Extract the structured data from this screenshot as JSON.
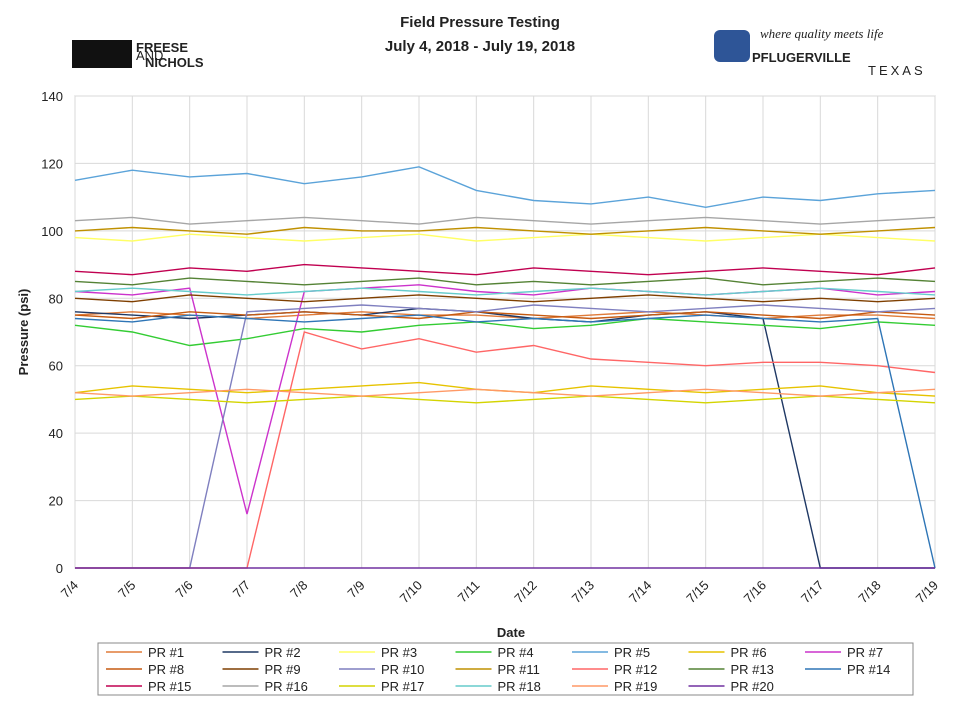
{
  "logos": {
    "left_top": "FREESE",
    "left_small": "AND",
    "left_bottom": "NICHOLS",
    "right_tagline": "where quality meets life",
    "right_name": "PFLUGERVILLE",
    "right_state": "TEXAS"
  },
  "chart_data": {
    "type": "line",
    "title": "Field Pressure Testing",
    "subtitle": "July 4, 2018 - July 19, 2018",
    "x_label": "Date",
    "y_label": "Pressure (psi)",
    "categories": [
      "7/4",
      "7/5",
      "7/6",
      "7/7",
      "7/8",
      "7/9",
      "7/10",
      "7/11",
      "7/12",
      "7/13",
      "7/14",
      "7/15",
      "7/16",
      "7/17",
      "7/18",
      "7/19"
    ],
    "ylim": [
      0,
      140
    ],
    "yticks": [
      0,
      20,
      40,
      60,
      80,
      100,
      120,
      140
    ],
    "grid": true,
    "series": [
      {
        "name": "PR #1",
        "color": "#e07b39",
        "values": [
          75,
          76,
          75,
          74,
          75,
          76,
          75,
          75,
          74,
          75,
          76,
          75,
          74,
          75,
          75,
          74
        ]
      },
      {
        "name": "PR #2",
        "color": "#1f3864",
        "values": [
          76,
          75,
          74,
          75,
          76,
          75,
          77,
          76,
          74,
          73,
          75,
          76,
          74,
          0,
          0,
          0
        ]
      },
      {
        "name": "PR #3",
        "color": "#ffff66",
        "values": [
          98,
          97,
          99,
          98,
          97,
          98,
          99,
          97,
          98,
          99,
          98,
          97,
          98,
          99,
          98,
          97
        ]
      },
      {
        "name": "PR #4",
        "color": "#33cc33",
        "values": [
          72,
          70,
          66,
          68,
          71,
          70,
          72,
          73,
          71,
          72,
          74,
          73,
          72,
          71,
          73,
          72
        ]
      },
      {
        "name": "PR #5",
        "color": "#5ba3d9",
        "values": [
          115,
          118,
          116,
          117,
          114,
          116,
          119,
          112,
          109,
          108,
          110,
          107,
          110,
          109,
          111,
          112
        ]
      },
      {
        "name": "PR #6",
        "color": "#e6c300",
        "values": [
          52,
          54,
          53,
          52,
          53,
          54,
          55,
          53,
          52,
          54,
          53,
          52,
          53,
          54,
          52,
          51
        ]
      },
      {
        "name": "PR #7",
        "color": "#cc33cc",
        "values": [
          82,
          81,
          83,
          16,
          82,
          83,
          84,
          82,
          81,
          83,
          82,
          81,
          82,
          83,
          81,
          82
        ]
      },
      {
        "name": "PR #8",
        "color": "#c55a11",
        "values": [
          75,
          74,
          76,
          75,
          76,
          75,
          74,
          76,
          75,
          74,
          75,
          76,
          75,
          74,
          76,
          75
        ]
      },
      {
        "name": "PR #9",
        "color": "#7f3f00",
        "values": [
          80,
          79,
          81,
          80,
          79,
          80,
          81,
          80,
          79,
          80,
          81,
          80,
          79,
          80,
          79,
          80
        ]
      },
      {
        "name": "PR #10",
        "color": "#7f7fbf",
        "values": [
          0,
          0,
          0,
          76,
          77,
          78,
          77,
          76,
          78,
          77,
          76,
          77,
          78,
          77,
          76,
          77
        ]
      },
      {
        "name": "PR #11",
        "color": "#bf9000",
        "values": [
          100,
          101,
          100,
          99,
          101,
          100,
          100,
          101,
          100,
          99,
          100,
          101,
          100,
          99,
          100,
          101
        ]
      },
      {
        "name": "PR #12",
        "color": "#ff6666",
        "values": [
          0,
          0,
          0,
          0,
          70,
          65,
          68,
          64,
          66,
          62,
          61,
          60,
          61,
          61,
          60,
          58
        ]
      },
      {
        "name": "PR #13",
        "color": "#548235",
        "values": [
          85,
          84,
          86,
          85,
          84,
          85,
          86,
          84,
          85,
          84,
          85,
          86,
          84,
          85,
          86,
          85
        ]
      },
      {
        "name": "PR #14",
        "color": "#2e75b6",
        "values": [
          74,
          73,
          75,
          74,
          73,
          74,
          75,
          73,
          74,
          73,
          74,
          75,
          74,
          73,
          74,
          0
        ]
      },
      {
        "name": "PR #15",
        "color": "#c00050",
        "values": [
          88,
          87,
          89,
          88,
          90,
          89,
          88,
          87,
          89,
          88,
          87,
          88,
          89,
          88,
          87,
          89
        ]
      },
      {
        "name": "PR #16",
        "color": "#a6a6a6",
        "values": [
          103,
          104,
          102,
          103,
          104,
          103,
          102,
          104,
          103,
          102,
          103,
          104,
          103,
          102,
          103,
          104
        ]
      },
      {
        "name": "PR #17",
        "color": "#d4d400",
        "values": [
          50,
          51,
          50,
          49,
          50,
          51,
          50,
          49,
          50,
          51,
          50,
          49,
          50,
          51,
          50,
          49
        ]
      },
      {
        "name": "PR #18",
        "color": "#66cccc",
        "values": [
          82,
          83,
          82,
          81,
          82,
          83,
          82,
          81,
          82,
          83,
          82,
          81,
          82,
          83,
          82,
          81
        ]
      },
      {
        "name": "PR #19",
        "color": "#ff9966",
        "values": [
          52,
          51,
          52,
          53,
          52,
          51,
          52,
          53,
          52,
          51,
          52,
          53,
          52,
          51,
          52,
          53
        ]
      },
      {
        "name": "PR #20",
        "color": "#7030a0",
        "values": [
          0,
          0,
          0,
          0,
          0,
          0,
          0,
          0,
          0,
          0,
          0,
          0,
          0,
          0,
          0,
          0
        ]
      }
    ]
  }
}
